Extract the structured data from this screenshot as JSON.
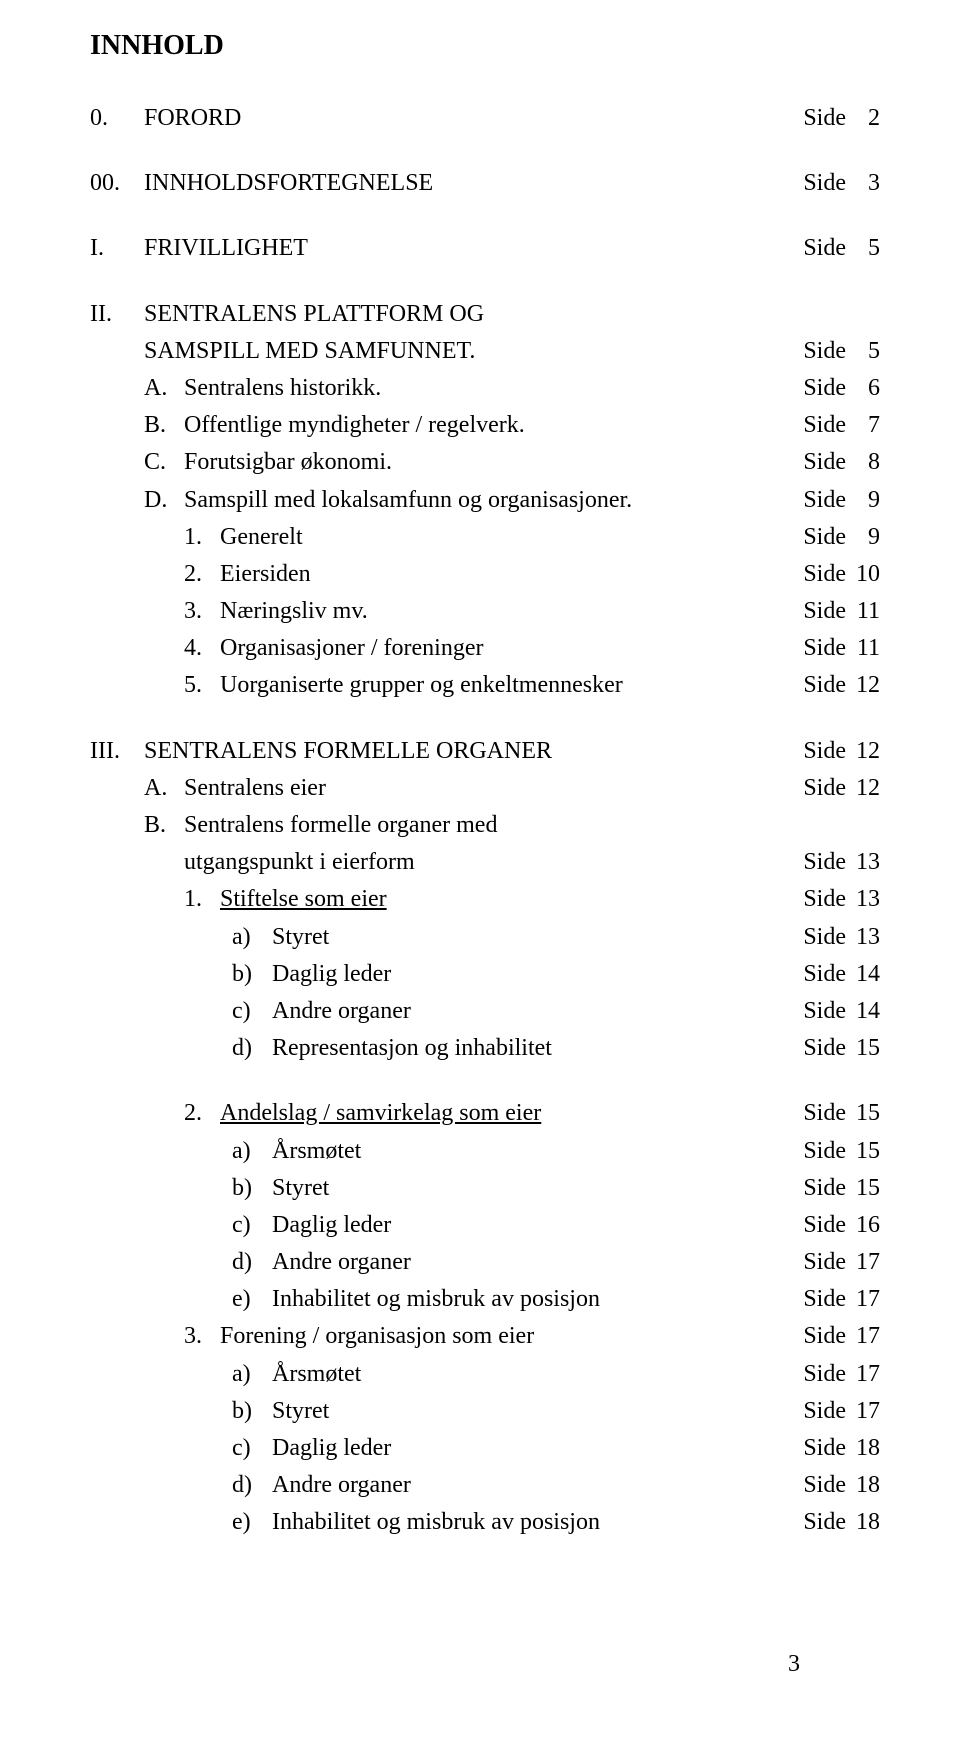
{
  "title": "INNHOLD",
  "page_label": "Side",
  "page_number": "3",
  "rows": [
    {
      "type": "roman",
      "marker": "0.",
      "label": "FORORD",
      "page": "2",
      "gap_after": true
    },
    {
      "type": "roman",
      "marker": "00.",
      "label": "INNHOLDSFORTEGNELSE",
      "page": "3",
      "gap_after": true
    },
    {
      "type": "roman",
      "marker": "I.",
      "label": "FRIVILLIGHET",
      "page": "5",
      "gap_after": true
    },
    {
      "type": "roman",
      "marker": "II.",
      "label": "SENTRALENS PLATTFORM OG",
      "page": ""
    },
    {
      "type": "cont",
      "label": "SAMSPILL MED SAMFUNNET.",
      "page": "5"
    },
    {
      "type": "letter",
      "marker": "A.",
      "label": "Sentralens historikk.",
      "page": "6"
    },
    {
      "type": "letter",
      "marker": "B.",
      "label": "Offentlige myndigheter / regelverk.",
      "page": "7"
    },
    {
      "type": "letter",
      "marker": "C.",
      "label": "Forutsigbar økonomi.",
      "page": "8"
    },
    {
      "type": "letter",
      "marker": "D.",
      "label": "Samspill med lokalsamfunn og organisasjoner.",
      "page": "9"
    },
    {
      "type": "num",
      "marker": "1.",
      "label": "Generelt",
      "page": "9"
    },
    {
      "type": "num",
      "marker": "2.",
      "label": "Eiersiden",
      "page": "10"
    },
    {
      "type": "num",
      "marker": "3.",
      "label": "Næringsliv mv.",
      "page": "11"
    },
    {
      "type": "num",
      "marker": "4.",
      "label": "Organisasjoner / foreninger",
      "page": "11"
    },
    {
      "type": "num",
      "marker": "5.",
      "label": "Uorganiserte grupper og enkeltmennesker",
      "page": "12",
      "gap_after": true
    },
    {
      "type": "roman",
      "marker": "III.",
      "label": "SENTRALENS FORMELLE ORGANER",
      "page": "12"
    },
    {
      "type": "letter",
      "marker": "A.",
      "label": "Sentralens eier",
      "page": "12"
    },
    {
      "type": "letter",
      "marker": "B.",
      "label": "Sentralens formelle organer med",
      "page": ""
    },
    {
      "type": "letter-cont",
      "label": "utgangspunkt i eierform",
      "page": "13"
    },
    {
      "type": "num",
      "marker": "1.",
      "label": "Stiftelse som eier",
      "page": "13",
      "underline": true
    },
    {
      "type": "alpha",
      "marker": "a)",
      "label": "Styret",
      "page": "13"
    },
    {
      "type": "alpha",
      "marker": "b)",
      "label": "Daglig leder",
      "page": "14"
    },
    {
      "type": "alpha",
      "marker": "c)",
      "label": "Andre organer",
      "page": "14"
    },
    {
      "type": "alpha",
      "marker": "d)",
      "label": "Representasjon og inhabilitet",
      "page": "15",
      "gap_after": true
    },
    {
      "type": "num",
      "marker": "2.",
      "label": "Andelslag / samvirkelag som eier",
      "page": "15",
      "underline": true
    },
    {
      "type": "alpha",
      "marker": "a)",
      "label": "Årsmøtet",
      "page": "15"
    },
    {
      "type": "alpha",
      "marker": "b)",
      "label": "Styret",
      "page": "15"
    },
    {
      "type": "alpha",
      "marker": "c)",
      "label": "Daglig leder",
      "page": "16"
    },
    {
      "type": "alpha",
      "marker": "d)",
      "label": "Andre organer",
      "page": "17"
    },
    {
      "type": "alpha",
      "marker": "e)",
      "label": "Inhabilitet og misbruk av posisjon",
      "page": "17"
    },
    {
      "type": "num",
      "marker": "3.",
      "label": "Forening / organisasjon som eier",
      "page": "17"
    },
    {
      "type": "alpha",
      "marker": "a)",
      "label": "Årsmøtet",
      "page": "17"
    },
    {
      "type": "alpha",
      "marker": "b)",
      "label": "Styret",
      "page": "17"
    },
    {
      "type": "alpha",
      "marker": "c)",
      "label": "Daglig leder",
      "page": "18"
    },
    {
      "type": "alpha",
      "marker": "d)",
      "label": "Andre organer",
      "page": "18"
    },
    {
      "type": "alpha",
      "marker": "e)",
      "label": "Inhabilitet og misbruk av posisjon",
      "page": "18"
    }
  ]
}
